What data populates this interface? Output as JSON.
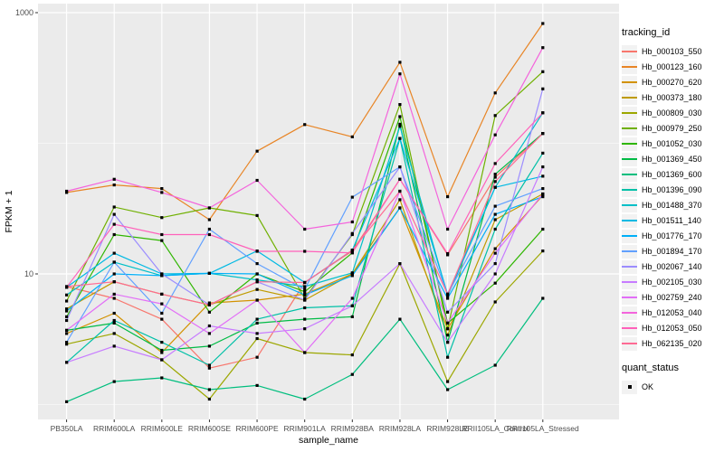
{
  "chart_data": {
    "type": "line",
    "title": "",
    "xlabel": "sample_name",
    "ylabel": "FPKM + 1",
    "y_scale": "log10",
    "ylim": [
      0.77,
      1150
    ],
    "y_ticks": [
      {
        "value": 1000,
        "label": "1000"
      },
      {
        "value": 10,
        "label": "10"
      }
    ],
    "y_minor_gridlines": [
      100,
      1
    ],
    "grid": "on",
    "panel_bg": "#EBEBEB",
    "gridline_color": "#FFFFFF",
    "axis_text_color": "#4D4D4D",
    "marker": "black-point",
    "marker_color": "#000000",
    "categories": [
      "PB350LA",
      "RRIM600LA",
      "RRIM600LE",
      "RRIM600SE",
      "RRIM600PE",
      "RRIM901LA",
      "RRIM928BA",
      "RRIM928LA",
      "RRIM928LE",
      "RRII105LA_Control",
      "RRII105LA_Stressed"
    ],
    "legend": {
      "title": "tracking_id",
      "position": "right"
    },
    "quant_legend": {
      "title": "quant_status",
      "items": [
        {
          "label": "OK",
          "marker": "black-square"
        }
      ]
    },
    "series": [
      {
        "name": "Hb_000103_550",
        "color": "#F8766D",
        "values": [
          8,
          6.5,
          4.5,
          1.9,
          2.3,
          8.6,
          15,
          53,
          14,
          55,
          119
        ]
      },
      {
        "name": "Hb_000123_160",
        "color": "#E88526",
        "values": [
          42,
          48,
          45,
          26,
          87,
          139,
          112,
          417,
          39,
          243,
          826
        ]
      },
      {
        "name": "Hb_000270_620",
        "color": "#D39200",
        "values": [
          3.5,
          5,
          2.5,
          6,
          6.3,
          7,
          10,
          32,
          3.8,
          15.6,
          40
        ]
      },
      {
        "name": "Hb_000373_180",
        "color": "#BF9B00",
        "values": [
          5.4,
          8.7,
          7,
          5.8,
          7.6,
          6.3,
          10,
          37,
          3.4,
          26,
          41
        ]
      },
      {
        "name": "Hb_000809_030",
        "color": "#9CA700",
        "values": [
          2.9,
          3.5,
          2.2,
          1.1,
          3.2,
          2.5,
          2.4,
          12,
          1.5,
          6.1,
          15
        ]
      },
      {
        "name": "Hb_000979_250",
        "color": "#6FB000",
        "values": [
          6.2,
          32.5,
          27,
          32,
          28,
          6.5,
          20,
          198,
          3.8,
          163,
          353
        ]
      },
      {
        "name": "Hb_001052_030",
        "color": "#2FB600",
        "values": [
          4.7,
          20,
          18,
          5.1,
          10,
          7.3,
          14.5,
          160,
          4.2,
          8.5,
          22
        ]
      },
      {
        "name": "Hb_001369_450",
        "color": "#00BB45",
        "values": [
          3.7,
          4.2,
          2.6,
          2.8,
          4.2,
          4.5,
          4.7,
          140,
          3,
          58,
          119
        ]
      },
      {
        "name": "Hb_001369_600",
        "color": "#00BE7E",
        "values": [
          1.05,
          1.5,
          1.6,
          1.3,
          1.4,
          1.1,
          1.7,
          4.5,
          1.3,
          2,
          6.5
        ]
      },
      {
        "name": "Hb_001396_090",
        "color": "#00C0A7",
        "values": [
          2.1,
          4.4,
          3,
          2,
          4.5,
          5.5,
          5.7,
          109,
          2.3,
          22,
          84
        ]
      },
      {
        "name": "Hb_001488_370",
        "color": "#00BFC8",
        "values": [
          6.9,
          12.3,
          9.7,
          10.1,
          9,
          8,
          10.2,
          135,
          6.8,
          46,
          171
        ]
      },
      {
        "name": "Hb_001511_140",
        "color": "#00B9E3",
        "values": [
          7.9,
          14.4,
          10,
          10.1,
          15,
          8.6,
          15.2,
          109,
          7,
          46,
          56
        ]
      },
      {
        "name": "Hb_001776_170",
        "color": "#00AFF8",
        "values": [
          5.2,
          10,
          9.7,
          10.1,
          10,
          6.9,
          9.7,
          32,
          6.5,
          28.6,
          39
        ]
      },
      {
        "name": "Hb_001894_170",
        "color": "#61A0FF",
        "values": [
          3,
          12.3,
          5,
          22,
          12,
          7.6,
          38.7,
          66,
          7,
          33,
          45
        ]
      },
      {
        "name": "Hb_002067_140",
        "color": "#9C8DFF",
        "values": [
          4.4,
          28.6,
          10,
          5.8,
          8.7,
          6.3,
          20.4,
          66,
          5.1,
          12,
          261
        ]
      },
      {
        "name": "Hb_002105_030",
        "color": "#C77CFF",
        "values": [
          2.1,
          2.8,
          2.2,
          4,
          3.5,
          3.8,
          5.7,
          12,
          3,
          10,
          66
        ]
      },
      {
        "name": "Hb_002759_240",
        "color": "#E26EF7",
        "values": [
          3.7,
          7,
          5.9,
          3.5,
          6.3,
          2.5,
          6.5,
          43,
          4.2,
          14.4,
          41
        ]
      },
      {
        "name": "Hb_012053_040",
        "color": "#F464DC",
        "values": [
          43,
          53,
          42,
          32,
          52,
          22,
          25,
          340,
          22,
          116,
          540
        ]
      },
      {
        "name": "Hb_012053_050",
        "color": "#FF61BA",
        "values": [
          7.9,
          24,
          20,
          20,
          14.9,
          14.9,
          14.5,
          53,
          14.3,
          70,
          171
        ]
      },
      {
        "name": "Hb_062135_020",
        "color": "#FF6B94",
        "values": [
          8,
          8.7,
          7,
          5.8,
          8.7,
          8.6,
          15.2,
          43,
          7,
          51,
          119
        ]
      }
    ]
  }
}
